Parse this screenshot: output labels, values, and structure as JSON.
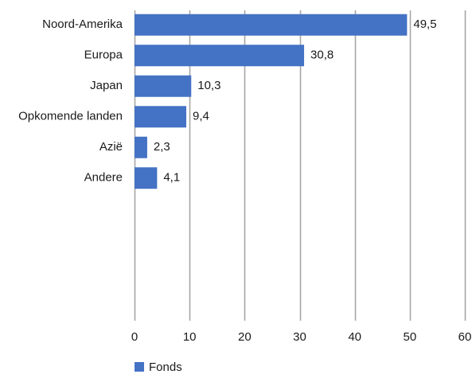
{
  "chart_data": {
    "type": "bar",
    "orientation": "horizontal",
    "categories": [
      "Noord-Amerika",
      "Europa",
      "Japan",
      "Opkomende landen",
      "Azië",
      "Andere"
    ],
    "series": [
      {
        "name": "Fonds",
        "values": [
          49.5,
          30.8,
          10.3,
          9.4,
          2.3,
          4.1
        ],
        "value_labels": [
          "49,5",
          "30,8",
          "10,3",
          "9,4",
          "2,3",
          "4,1"
        ],
        "color": "#4472C4"
      }
    ],
    "title": "",
    "xlabel": "",
    "ylabel": "",
    "xlim": [
      0,
      60
    ],
    "x_ticks": [
      0,
      10,
      20,
      30,
      40,
      50,
      60
    ],
    "x_tick_labels": [
      "0",
      "10",
      "20",
      "30",
      "40",
      "50",
      "60"
    ],
    "grid": "vertical",
    "grid_color": "#a6a6a6",
    "legend": "bottom-left"
  }
}
